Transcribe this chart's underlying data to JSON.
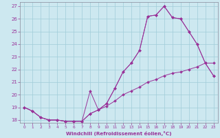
{
  "xlabel": "Windchill (Refroidissement éolien,°C)",
  "bg_color": "#cde8f0",
  "grid_color": "#a0ccd8",
  "line_color": "#993399",
  "xlim": [
    -0.5,
    23.5
  ],
  "ylim": [
    17.8,
    27.3
  ],
  "xticks": [
    0,
    1,
    2,
    3,
    4,
    5,
    6,
    7,
    8,
    9,
    10,
    11,
    12,
    13,
    14,
    15,
    16,
    17,
    18,
    19,
    20,
    21,
    22,
    23
  ],
  "yticks": [
    18,
    19,
    20,
    21,
    22,
    23,
    24,
    25,
    26,
    27
  ],
  "line1_x": [
    0,
    1,
    2,
    3,
    4,
    5,
    6,
    7,
    8,
    9,
    10,
    11,
    12,
    13,
    14,
    15,
    16,
    17,
    18,
    19,
    20,
    21,
    22,
    23
  ],
  "line1_y": [
    19.0,
    18.7,
    18.2,
    18.0,
    18.0,
    17.9,
    17.9,
    17.9,
    18.5,
    18.8,
    19.1,
    19.5,
    20.0,
    20.3,
    20.6,
    21.0,
    21.2,
    21.5,
    21.7,
    21.8,
    22.0,
    22.2,
    22.5,
    21.5
  ],
  "line2_x": [
    0,
    1,
    2,
    3,
    4,
    5,
    6,
    7,
    8,
    9,
    10,
    11,
    12,
    13,
    14,
    15,
    16,
    17,
    18,
    19,
    20,
    21,
    22,
    23
  ],
  "line2_y": [
    19.0,
    18.7,
    18.2,
    18.0,
    18.0,
    17.9,
    17.9,
    17.9,
    20.3,
    18.8,
    19.3,
    20.5,
    21.8,
    22.5,
    23.5,
    26.2,
    26.3,
    27.0,
    26.1,
    26.0,
    25.0,
    24.0,
    22.5,
    22.5
  ],
  "line3_x": [
    0,
    1,
    2,
    3,
    4,
    5,
    6,
    7,
    8,
    9,
    10,
    11,
    12,
    13,
    14,
    15,
    16,
    17,
    18,
    19,
    20,
    21,
    22,
    23
  ],
  "line3_y": [
    19.0,
    18.7,
    18.2,
    18.0,
    18.0,
    17.9,
    17.9,
    17.9,
    18.5,
    18.8,
    19.3,
    20.5,
    21.8,
    22.5,
    23.5,
    26.2,
    26.3,
    27.0,
    26.1,
    26.0,
    25.0,
    24.0,
    22.5,
    21.5
  ]
}
